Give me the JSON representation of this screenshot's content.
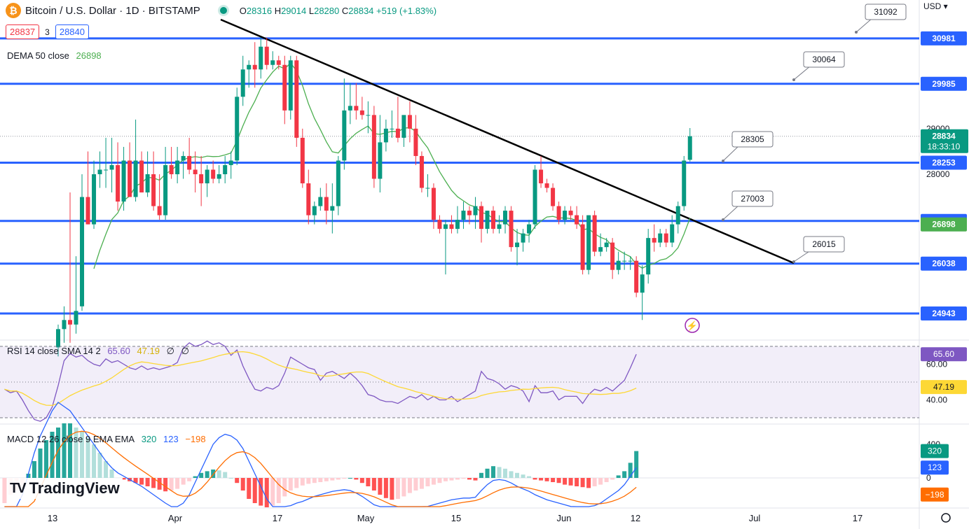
{
  "header": {
    "symbol_icon": "bitcoin-icon",
    "title": "Bitcoin / U.S. Dollar · 1D · BITSTAMP",
    "ohlc": {
      "o_label": "O",
      "o": "28316",
      "h_label": "H",
      "h": "29014",
      "l_label": "L",
      "l": "28280",
      "c_label": "C",
      "c": "28834",
      "change": "+519 (+1.83%)"
    },
    "currency": "USD ▾"
  },
  "trade": {
    "bid": "28837",
    "spread": "3",
    "ask": "28840"
  },
  "indicators": {
    "dema": {
      "label": "DEMA 50 close",
      "value": "26898"
    },
    "rsi": {
      "label": "RSI 14 close SMA 14 2",
      "v1": "65.60",
      "v2": "47.19",
      "v3": "∅",
      "v4": "∅"
    },
    "macd": {
      "label": "MACD 12 26 close 9 EMA EMA",
      "v1": "320",
      "v2": "123",
      "v3": "−198"
    }
  },
  "logo": {
    "text": "TradingView"
  },
  "colors": {
    "up": "#089981",
    "down": "#f23645",
    "level": "#2962ff",
    "dema": "#4caf50",
    "rsi": "#7e57c2",
    "rsi_ma": "#fdd835",
    "macd": "#2962ff",
    "signal": "#ff6d00"
  },
  "price_axis": {
    "ticks": [
      "29000",
      "28000"
    ],
    "levels": [
      "30981",
      "29985",
      "28253",
      "26975",
      "26038",
      "24943"
    ],
    "last_price": "28834",
    "countdown": "18:33:10",
    "dema_tag": "26898"
  },
  "rsi_axis": {
    "ticks": [
      "60.00",
      "40.00"
    ],
    "tag1": "65.60",
    "tag2": "47.19"
  },
  "macd_axis": {
    "ticks": [
      "400",
      "0"
    ],
    "tag1": "320",
    "tag2": "123",
    "tag3": "−198"
  },
  "time_axis": [
    "13",
    "Apr",
    "17",
    "May",
    "15",
    "Jun",
    "12",
    "Jul",
    "17"
  ],
  "callouts": [
    "31092",
    "30064",
    "28305",
    "27003",
    "26015"
  ],
  "chart_data": {
    "type": "candlestick",
    "series": [
      {
        "o": 24200,
        "h": 24700,
        "l": 24000,
        "c": 24600
      },
      {
        "o": 24600,
        "h": 25100,
        "l": 24300,
        "c": 24800
      },
      {
        "o": 24800,
        "h": 27600,
        "l": 24300,
        "c": 24700
      },
      {
        "o": 24700,
        "h": 26200,
        "l": 24500,
        "c": 25000
      },
      {
        "o": 25100,
        "h": 28000,
        "l": 25000,
        "c": 27500
      },
      {
        "o": 27500,
        "h": 28500,
        "l": 26900,
        "c": 26900
      },
      {
        "o": 26900,
        "h": 28300,
        "l": 26800,
        "c": 28000
      },
      {
        "o": 28000,
        "h": 28500,
        "l": 27700,
        "c": 28100
      },
      {
        "o": 28100,
        "h": 28800,
        "l": 27700,
        "c": 28100
      },
      {
        "o": 28100,
        "h": 28800,
        "l": 27600,
        "c": 28200
      },
      {
        "o": 28200,
        "h": 28700,
        "l": 27200,
        "c": 27400
      },
      {
        "o": 27400,
        "h": 28600,
        "l": 27200,
        "c": 28300
      },
      {
        "o": 28300,
        "h": 28700,
        "l": 27500,
        "c": 27500
      },
      {
        "o": 27500,
        "h": 29200,
        "l": 27400,
        "c": 28300
      },
      {
        "o": 28300,
        "h": 28500,
        "l": 27600,
        "c": 27600
      },
      {
        "o": 27600,
        "h": 28500,
        "l": 27500,
        "c": 28000
      },
      {
        "o": 28000,
        "h": 28500,
        "l": 27200,
        "c": 27300
      },
      {
        "o": 27300,
        "h": 28000,
        "l": 27000,
        "c": 27100
      },
      {
        "o": 27100,
        "h": 28600,
        "l": 27000,
        "c": 28200
      },
      {
        "o": 28200,
        "h": 28600,
        "l": 27900,
        "c": 28000
      },
      {
        "o": 28000,
        "h": 28600,
        "l": 27800,
        "c": 28300
      },
      {
        "o": 28300,
        "h": 28500,
        "l": 27900,
        "c": 28400
      },
      {
        "o": 28400,
        "h": 28800,
        "l": 28000,
        "c": 28100
      },
      {
        "o": 28100,
        "h": 28500,
        "l": 27600,
        "c": 28000
      },
      {
        "o": 28000,
        "h": 28400,
        "l": 27300,
        "c": 27800
      },
      {
        "o": 27800,
        "h": 28200,
        "l": 27500,
        "c": 28100
      },
      {
        "o": 28100,
        "h": 28300,
        "l": 27800,
        "c": 27900
      },
      {
        "o": 27900,
        "h": 28200,
        "l": 27800,
        "c": 28000
      },
      {
        "o": 28000,
        "h": 28400,
        "l": 27800,
        "c": 28200
      },
      {
        "o": 28200,
        "h": 28500,
        "l": 27900,
        "c": 28300
      },
      {
        "o": 28300,
        "h": 29900,
        "l": 28200,
        "c": 29700
      },
      {
        "o": 29700,
        "h": 30600,
        "l": 29500,
        "c": 30300
      },
      {
        "o": 30300,
        "h": 30500,
        "l": 29900,
        "c": 30400
      },
      {
        "o": 30400,
        "h": 30900,
        "l": 29900,
        "c": 30300
      },
      {
        "o": 30300,
        "h": 31000,
        "l": 30100,
        "c": 30800
      },
      {
        "o": 30800,
        "h": 31000,
        "l": 30300,
        "c": 30400
      },
      {
        "o": 30400,
        "h": 30700,
        "l": 30300,
        "c": 30500
      },
      {
        "o": 30500,
        "h": 30600,
        "l": 30300,
        "c": 30400
      },
      {
        "o": 30400,
        "h": 30600,
        "l": 29100,
        "c": 29400
      },
      {
        "o": 29400,
        "h": 30600,
        "l": 29200,
        "c": 30500
      },
      {
        "o": 30500,
        "h": 30600,
        "l": 28600,
        "c": 28800
      },
      {
        "o": 28800,
        "h": 29000,
        "l": 27700,
        "c": 27800
      },
      {
        "o": 27800,
        "h": 28100,
        "l": 26900,
        "c": 27100
      },
      {
        "o": 27100,
        "h": 27400,
        "l": 26900,
        "c": 27300
      },
      {
        "o": 27300,
        "h": 27700,
        "l": 27200,
        "c": 27500
      },
      {
        "o": 27500,
        "h": 27800,
        "l": 26900,
        "c": 27200
      },
      {
        "o": 27200,
        "h": 27800,
        "l": 26700,
        "c": 27300
      },
      {
        "o": 27300,
        "h": 28400,
        "l": 27100,
        "c": 28300
      },
      {
        "o": 28300,
        "h": 30100,
        "l": 28100,
        "c": 29400
      },
      {
        "o": 29400,
        "h": 30000,
        "l": 29100,
        "c": 29500
      },
      {
        "o": 29500,
        "h": 30000,
        "l": 29200,
        "c": 29400
      },
      {
        "o": 29400,
        "h": 29700,
        "l": 29200,
        "c": 29300
      },
      {
        "o": 29300,
        "h": 29600,
        "l": 28900,
        "c": 29300
      },
      {
        "o": 29300,
        "h": 29500,
        "l": 27700,
        "c": 27900
      },
      {
        "o": 27900,
        "h": 29300,
        "l": 27600,
        "c": 28700
      },
      {
        "o": 28700,
        "h": 29200,
        "l": 28500,
        "c": 29000
      },
      {
        "o": 29000,
        "h": 29400,
        "l": 28800,
        "c": 29000
      },
      {
        "o": 29000,
        "h": 29700,
        "l": 28700,
        "c": 28800
      },
      {
        "o": 28800,
        "h": 29200,
        "l": 28600,
        "c": 29300
      },
      {
        "o": 29300,
        "h": 29600,
        "l": 28700,
        "c": 29000
      },
      {
        "o": 29000,
        "h": 29300,
        "l": 28200,
        "c": 28400
      },
      {
        "o": 28400,
        "h": 28500,
        "l": 27600,
        "c": 27700
      },
      {
        "o": 27700,
        "h": 28000,
        "l": 27500,
        "c": 27700
      },
      {
        "o": 27700,
        "h": 27800,
        "l": 26800,
        "c": 27000
      },
      {
        "o": 27000,
        "h": 27100,
        "l": 26700,
        "c": 26800
      },
      {
        "o": 26800,
        "h": 27000,
        "l": 25800,
        "c": 26900
      },
      {
        "o": 26900,
        "h": 27100,
        "l": 26700,
        "c": 26800
      },
      {
        "o": 26800,
        "h": 27300,
        "l": 26700,
        "c": 27000
      },
      {
        "o": 27000,
        "h": 27400,
        "l": 26800,
        "c": 27200
      },
      {
        "o": 27200,
        "h": 27300,
        "l": 26900,
        "c": 27100
      },
      {
        "o": 27100,
        "h": 27500,
        "l": 26800,
        "c": 27300
      },
      {
        "o": 27300,
        "h": 27400,
        "l": 26500,
        "c": 26800
      },
      {
        "o": 26800,
        "h": 27200,
        "l": 26700,
        "c": 27200
      },
      {
        "o": 27200,
        "h": 27300,
        "l": 26700,
        "c": 26800
      },
      {
        "o": 26800,
        "h": 27100,
        "l": 26700,
        "c": 26900
      },
      {
        "o": 26900,
        "h": 27300,
        "l": 26700,
        "c": 27200
      },
      {
        "o": 27200,
        "h": 27300,
        "l": 26300,
        "c": 26400
      },
      {
        "o": 26400,
        "h": 26800,
        "l": 26000,
        "c": 26500
      },
      {
        "o": 26500,
        "h": 26800,
        "l": 26300,
        "c": 26700
      },
      {
        "o": 26700,
        "h": 27000,
        "l": 26500,
        "c": 26900
      },
      {
        "o": 26900,
        "h": 28200,
        "l": 26800,
        "c": 28100
      },
      {
        "o": 28100,
        "h": 28400,
        "l": 27700,
        "c": 27800
      },
      {
        "o": 27800,
        "h": 27900,
        "l": 27600,
        "c": 27700
      },
      {
        "o": 27700,
        "h": 27800,
        "l": 27200,
        "c": 27300
      },
      {
        "o": 27300,
        "h": 27400,
        "l": 26900,
        "c": 27000
      },
      {
        "o": 27000,
        "h": 27300,
        "l": 26900,
        "c": 27200
      },
      {
        "o": 27200,
        "h": 27300,
        "l": 27000,
        "c": 27100
      },
      {
        "o": 27100,
        "h": 27300,
        "l": 26800,
        "c": 26900
      },
      {
        "o": 26900,
        "h": 27100,
        "l": 25800,
        "c": 25900
      },
      {
        "o": 25900,
        "h": 27100,
        "l": 25800,
        "c": 27100
      },
      {
        "o": 27100,
        "h": 27200,
        "l": 26200,
        "c": 26300
      },
      {
        "o": 26300,
        "h": 26700,
        "l": 26200,
        "c": 26400
      },
      {
        "o": 26400,
        "h": 26600,
        "l": 26300,
        "c": 26500
      },
      {
        "o": 26500,
        "h": 26600,
        "l": 25700,
        "c": 25900
      },
      {
        "o": 25900,
        "h": 26300,
        "l": 25800,
        "c": 26100
      },
      {
        "o": 26100,
        "h": 26300,
        "l": 25900,
        "c": 26100
      },
      {
        "o": 26100,
        "h": 26200,
        "l": 25900,
        "c": 26100
      },
      {
        "o": 26100,
        "h": 26200,
        "l": 25300,
        "c": 25400
      },
      {
        "o": 25400,
        "h": 26000,
        "l": 24800,
        "c": 25800
      },
      {
        "o": 25800,
        "h": 26800,
        "l": 25600,
        "c": 26600
      },
      {
        "o": 26600,
        "h": 26900,
        "l": 26300,
        "c": 26500
      },
      {
        "o": 26500,
        "h": 26800,
        "l": 26400,
        "c": 26700
      },
      {
        "o": 26700,
        "h": 26800,
        "l": 26400,
        "c": 26500
      },
      {
        "o": 26500,
        "h": 27100,
        "l": 26400,
        "c": 26900
      },
      {
        "o": 26900,
        "h": 27400,
        "l": 26700,
        "c": 27300
      },
      {
        "o": 27300,
        "h": 28400,
        "l": 27200,
        "c": 28300
      },
      {
        "o": 28316,
        "h": 29014,
        "l": 28280,
        "c": 28834
      }
    ]
  }
}
